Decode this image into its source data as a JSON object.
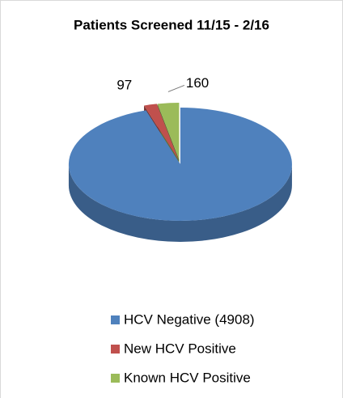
{
  "chart_data": {
    "type": "pie3d",
    "title": "Patients Screened 11/15 - 2/16",
    "categories": [
      "HCV Negative (4908)",
      "New HCV Positive",
      "Known HCV Positive"
    ],
    "values": [
      4908,
      97,
      160
    ],
    "value_labels": [
      null,
      "97",
      "160"
    ],
    "colors": [
      "#4f81bd",
      "#c0504d",
      "#9bbb59"
    ],
    "legend": "bottom"
  }
}
